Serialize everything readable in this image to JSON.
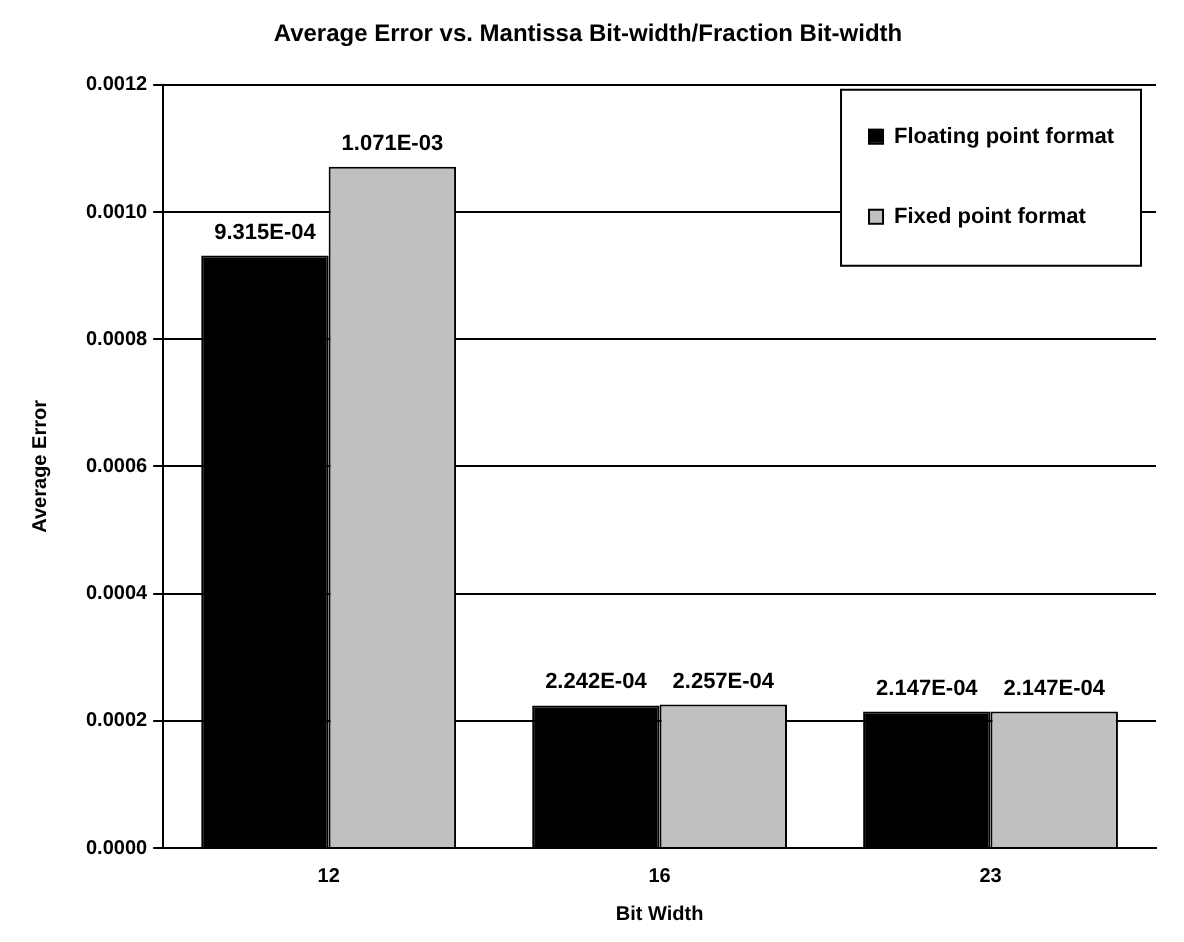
{
  "chart_data": {
    "type": "bar",
    "title": "Average Error vs. Mantissa Bit-width/Fraction Bit-width",
    "xlabel": "Bit Width",
    "ylabel": "Average Error",
    "categories": [
      "12",
      "16",
      "23"
    ],
    "series": [
      {
        "name": "Floating point format",
        "color": "#000000",
        "values": [
          0.0009315,
          0.0002242,
          0.0002147
        ],
        "value_labels": [
          "9.315E-04",
          "2.242E-04",
          "2.147E-04"
        ]
      },
      {
        "name": "Fixed point format",
        "color": "#c0c0c0",
        "values": [
          0.001071,
          0.0002257,
          0.0002147
        ],
        "value_labels": [
          "1.071E-03",
          "2.257E-04",
          "2.147E-04"
        ]
      }
    ],
    "ylim": [
      0,
      0.0012
    ],
    "yticks": [
      {
        "value": 0,
        "label": "0.0000"
      },
      {
        "value": 0.0002,
        "label": "0.0002"
      },
      {
        "value": 0.0004,
        "label": "0.0004"
      },
      {
        "value": 0.0006,
        "label": "0.0006"
      },
      {
        "value": 0.0008,
        "label": "0.0008"
      },
      {
        "value": 0.001,
        "label": "0.0010"
      },
      {
        "value": 0.0012,
        "label": "0.0012"
      }
    ],
    "grid": "y",
    "legend": "top right"
  }
}
